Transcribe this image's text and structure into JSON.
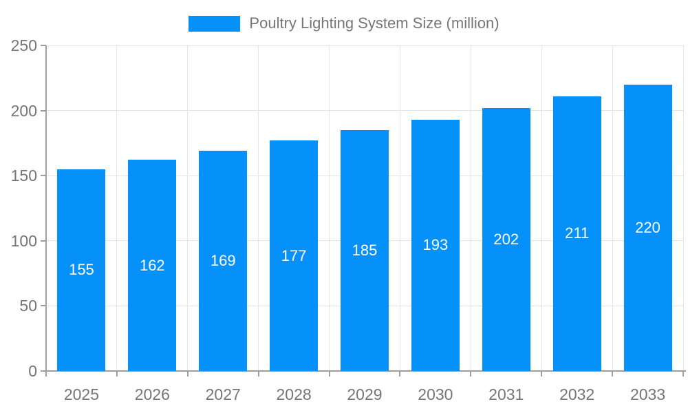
{
  "legend": {
    "label": "Poultry Lighting System Size (million)"
  },
  "colors": {
    "bar": "#0590FA",
    "grid": "#E4E4E4",
    "axis": "#9E9E9E",
    "tick_text": "#757575",
    "bar_label_text": "#FFFFFF",
    "background": "#FFFFFF"
  },
  "chart_data": {
    "type": "bar",
    "title": "",
    "series_name": "Poultry Lighting System Size (million)",
    "categories": [
      "2025",
      "2026",
      "2027",
      "2028",
      "2029",
      "2030",
      "2031",
      "2032",
      "2033"
    ],
    "values": [
      155,
      162,
      169,
      177,
      185,
      193,
      202,
      211,
      220
    ],
    "xlabel": "",
    "ylabel": "",
    "ylim": [
      0,
      250
    ],
    "ytick_step": 50,
    "yticks": [
      0,
      50,
      100,
      150,
      200,
      250
    ],
    "grid": true,
    "legend_position": "top",
    "bar_value_labels_shown": true
  }
}
